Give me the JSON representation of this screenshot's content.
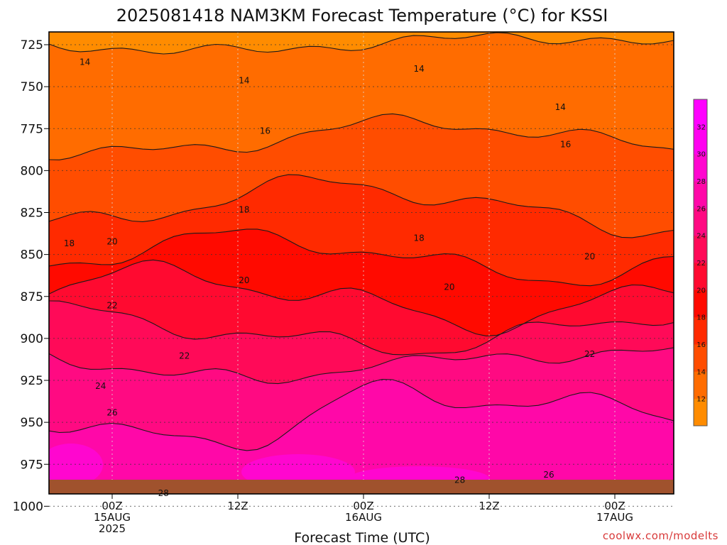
{
  "title": "2025081418 NAM3KM Forecast Temperature (°C) for KSSI",
  "credit": "coolwx.com/modelts",
  "colors": {
    "ground": "#a0522d",
    "frame": "#000000",
    "contour_line": "#1a1a1a"
  },
  "chart_data": {
    "type": "heatmap",
    "title": "2025081418 NAM3KM Forecast Temperature (°C) for KSSI",
    "xlabel": "Forecast Time (UTC)",
    "ylabel": "",
    "y_axis": {
      "reversed": true,
      "ticks": [
        725,
        750,
        775,
        800,
        825,
        850,
        875,
        900,
        925,
        950,
        975,
        1000
      ]
    },
    "x_axis": {
      "ticks": [
        {
          "line1": "00Z",
          "line2": "15AUG",
          "line3": "2025"
        },
        {
          "line1": "12Z",
          "line2": "",
          "line3": ""
        },
        {
          "line1": "00Z",
          "line2": "16AUG",
          "line3": ""
        },
        {
          "line1": "12Z",
          "line2": "",
          "line3": ""
        },
        {
          "line1": "00Z",
          "line2": "17AUG",
          "line3": ""
        }
      ]
    },
    "grid": true,
    "colorbar": {
      "levels": [
        12,
        14,
        16,
        18,
        20,
        22,
        24,
        26,
        28,
        30,
        32
      ],
      "colors": [
        "#ff8c00",
        "#ff6c00",
        "#ff4d00",
        "#ff2a00",
        "#ff0a00",
        "#ff0a30",
        "#ff0a58",
        "#ff0a82",
        "#ff08a8",
        "#ff06cf",
        "#ff00f0",
        "#ff00ff"
      ]
    },
    "contour_values": [
      14,
      16,
      18,
      20,
      22,
      24,
      26,
      28
    ],
    "band_colors": [
      "#ff8c00",
      "#ff6c00",
      "#ff4d00",
      "#ff2a00",
      "#ff0a00",
      "#ff0a30",
      "#ff0a58",
      "#ff0a82",
      "#ff08a8",
      "#ff06cf",
      "#ff00f0"
    ],
    "contour_labels": [
      {
        "text": "14",
        "hour": -2.6,
        "pressure": 737
      },
      {
        "text": "14",
        "hour": 12.6,
        "pressure": 748
      },
      {
        "text": "14",
        "hour": 29.3,
        "pressure": 741
      },
      {
        "text": "14",
        "hour": 42.8,
        "pressure": 764
      },
      {
        "text": "16",
        "hour": 14.6,
        "pressure": 778
      },
      {
        "text": "16",
        "hour": 43.3,
        "pressure": 786
      },
      {
        "text": "18",
        "hour": -4.1,
        "pressure": 845
      },
      {
        "text": "18",
        "hour": 12.6,
        "pressure": 825
      },
      {
        "text": "18",
        "hour": 29.3,
        "pressure": 842
      },
      {
        "text": "20",
        "hour": 0.0,
        "pressure": 844
      },
      {
        "text": "20",
        "hour": 12.6,
        "pressure": 867
      },
      {
        "text": "20",
        "hour": 32.2,
        "pressure": 871
      },
      {
        "text": "20",
        "hour": 45.6,
        "pressure": 853
      },
      {
        "text": "22",
        "hour": 6.9,
        "pressure": 912
      },
      {
        "text": "22",
        "hour": 0.0,
        "pressure": 882
      },
      {
        "text": "22",
        "hour": 45.6,
        "pressure": 911
      },
      {
        "text": "24",
        "hour": -1.1,
        "pressure": 930
      },
      {
        "text": "26",
        "hour": 0.0,
        "pressure": 946
      },
      {
        "text": "26",
        "hour": 41.7,
        "pressure": 983
      },
      {
        "text": "28",
        "hour": 4.9,
        "pressure": 994
      },
      {
        "text": "28",
        "hour": 33.2,
        "pressure": 986
      }
    ]
  }
}
